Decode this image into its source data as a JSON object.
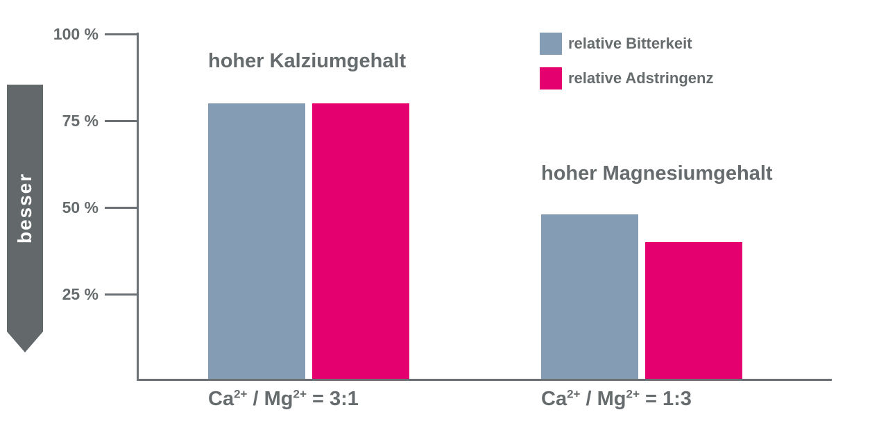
{
  "chart_data": {
    "type": "bar",
    "title": "",
    "y_axis": {
      "tick_labels": [
        "100 %",
        "75 %",
        "50 %",
        "25 %"
      ],
      "tick_values": [
        100,
        75,
        50,
        25
      ],
      "ylim": [
        0,
        100
      ],
      "arrow_label": "besser"
    },
    "categories": [
      "Ca2+ / Mg2+ = 3:1",
      "Ca2+ / Mg2+ = 1:3"
    ],
    "groups": [
      {
        "title": "hoher Kalziumgehalt",
        "x_label_parts": {
          "base1": "Ca",
          "sup1": "2+",
          "base2": " / Mg",
          "sup2": "2+",
          "suffix": " = 3:1"
        }
      },
      {
        "title": "hoher Magnesiumgehalt",
        "x_label_parts": {
          "base1": "Ca",
          "sup1": "2+",
          "base2": " / Mg",
          "sup2": "2+",
          "suffix": " = 1:3"
        }
      }
    ],
    "series": [
      {
        "name": "relative Bitterkeit",
        "color": "#859CB5",
        "values": [
          80,
          48
        ]
      },
      {
        "name": "relative Adstringenz",
        "color": "#E4006F",
        "values": [
          80,
          40
        ]
      }
    ],
    "legend_position": "top-right",
    "grid": false,
    "colors": {
      "axis": "#6B7074",
      "text": "#666B6D",
      "arrow": "#63696B",
      "bitterkeit_blue": "#859CB5",
      "adstringenz_pink": "#E4006F"
    }
  }
}
